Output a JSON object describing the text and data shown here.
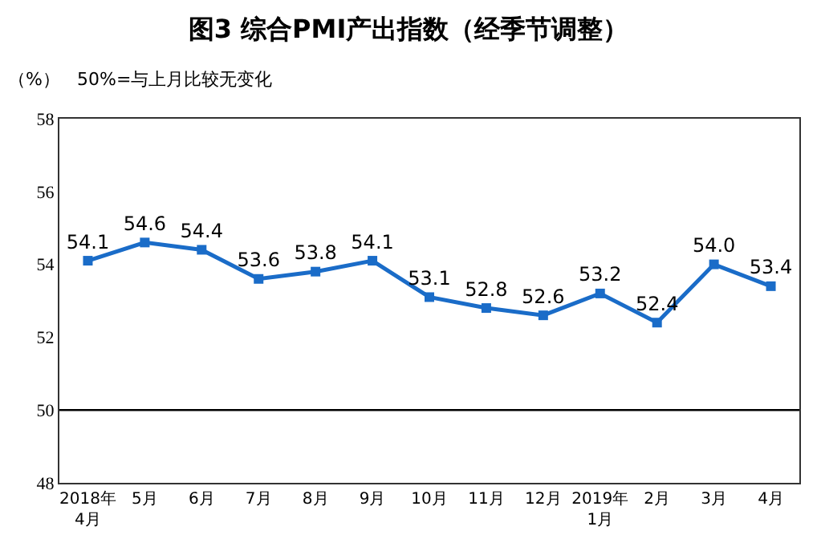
{
  "chart_data": {
    "type": "line",
    "title": "图3 综合PMI产出指数（经季节调整）",
    "annotations": [
      "（%）",
      "50%=与上月比较无变化"
    ],
    "categories": [
      "2018年\n4月",
      "5月",
      "6月",
      "7月",
      "8月",
      "9月",
      "10月",
      "11月",
      "12月",
      "2019年\n1月",
      "2月",
      "3月",
      "4月"
    ],
    "series": [
      {
        "color": "#1a6cc8",
        "values": [
          54.1,
          54.6,
          54.4,
          53.6,
          53.8,
          54.1,
          53.1,
          52.8,
          52.6,
          53.2,
          52.4,
          54.0,
          53.4
        ],
        "value_labels": [
          "54.1",
          "54.6",
          "54.4",
          "53.6",
          "53.8",
          "54.1",
          "53.1",
          "52.8",
          "52.6",
          "53.2",
          "52.4",
          "54.0",
          "53.4"
        ]
      }
    ],
    "ylim": [
      48,
      58
    ],
    "yticks": [
      48,
      50,
      52,
      54,
      56,
      58
    ],
    "ref_lines": [
      {
        "axis": "y",
        "value": 50,
        "color": "#000000"
      }
    ],
    "marker": "square",
    "grid": false,
    "legend": false,
    "line_style": "solid"
  }
}
